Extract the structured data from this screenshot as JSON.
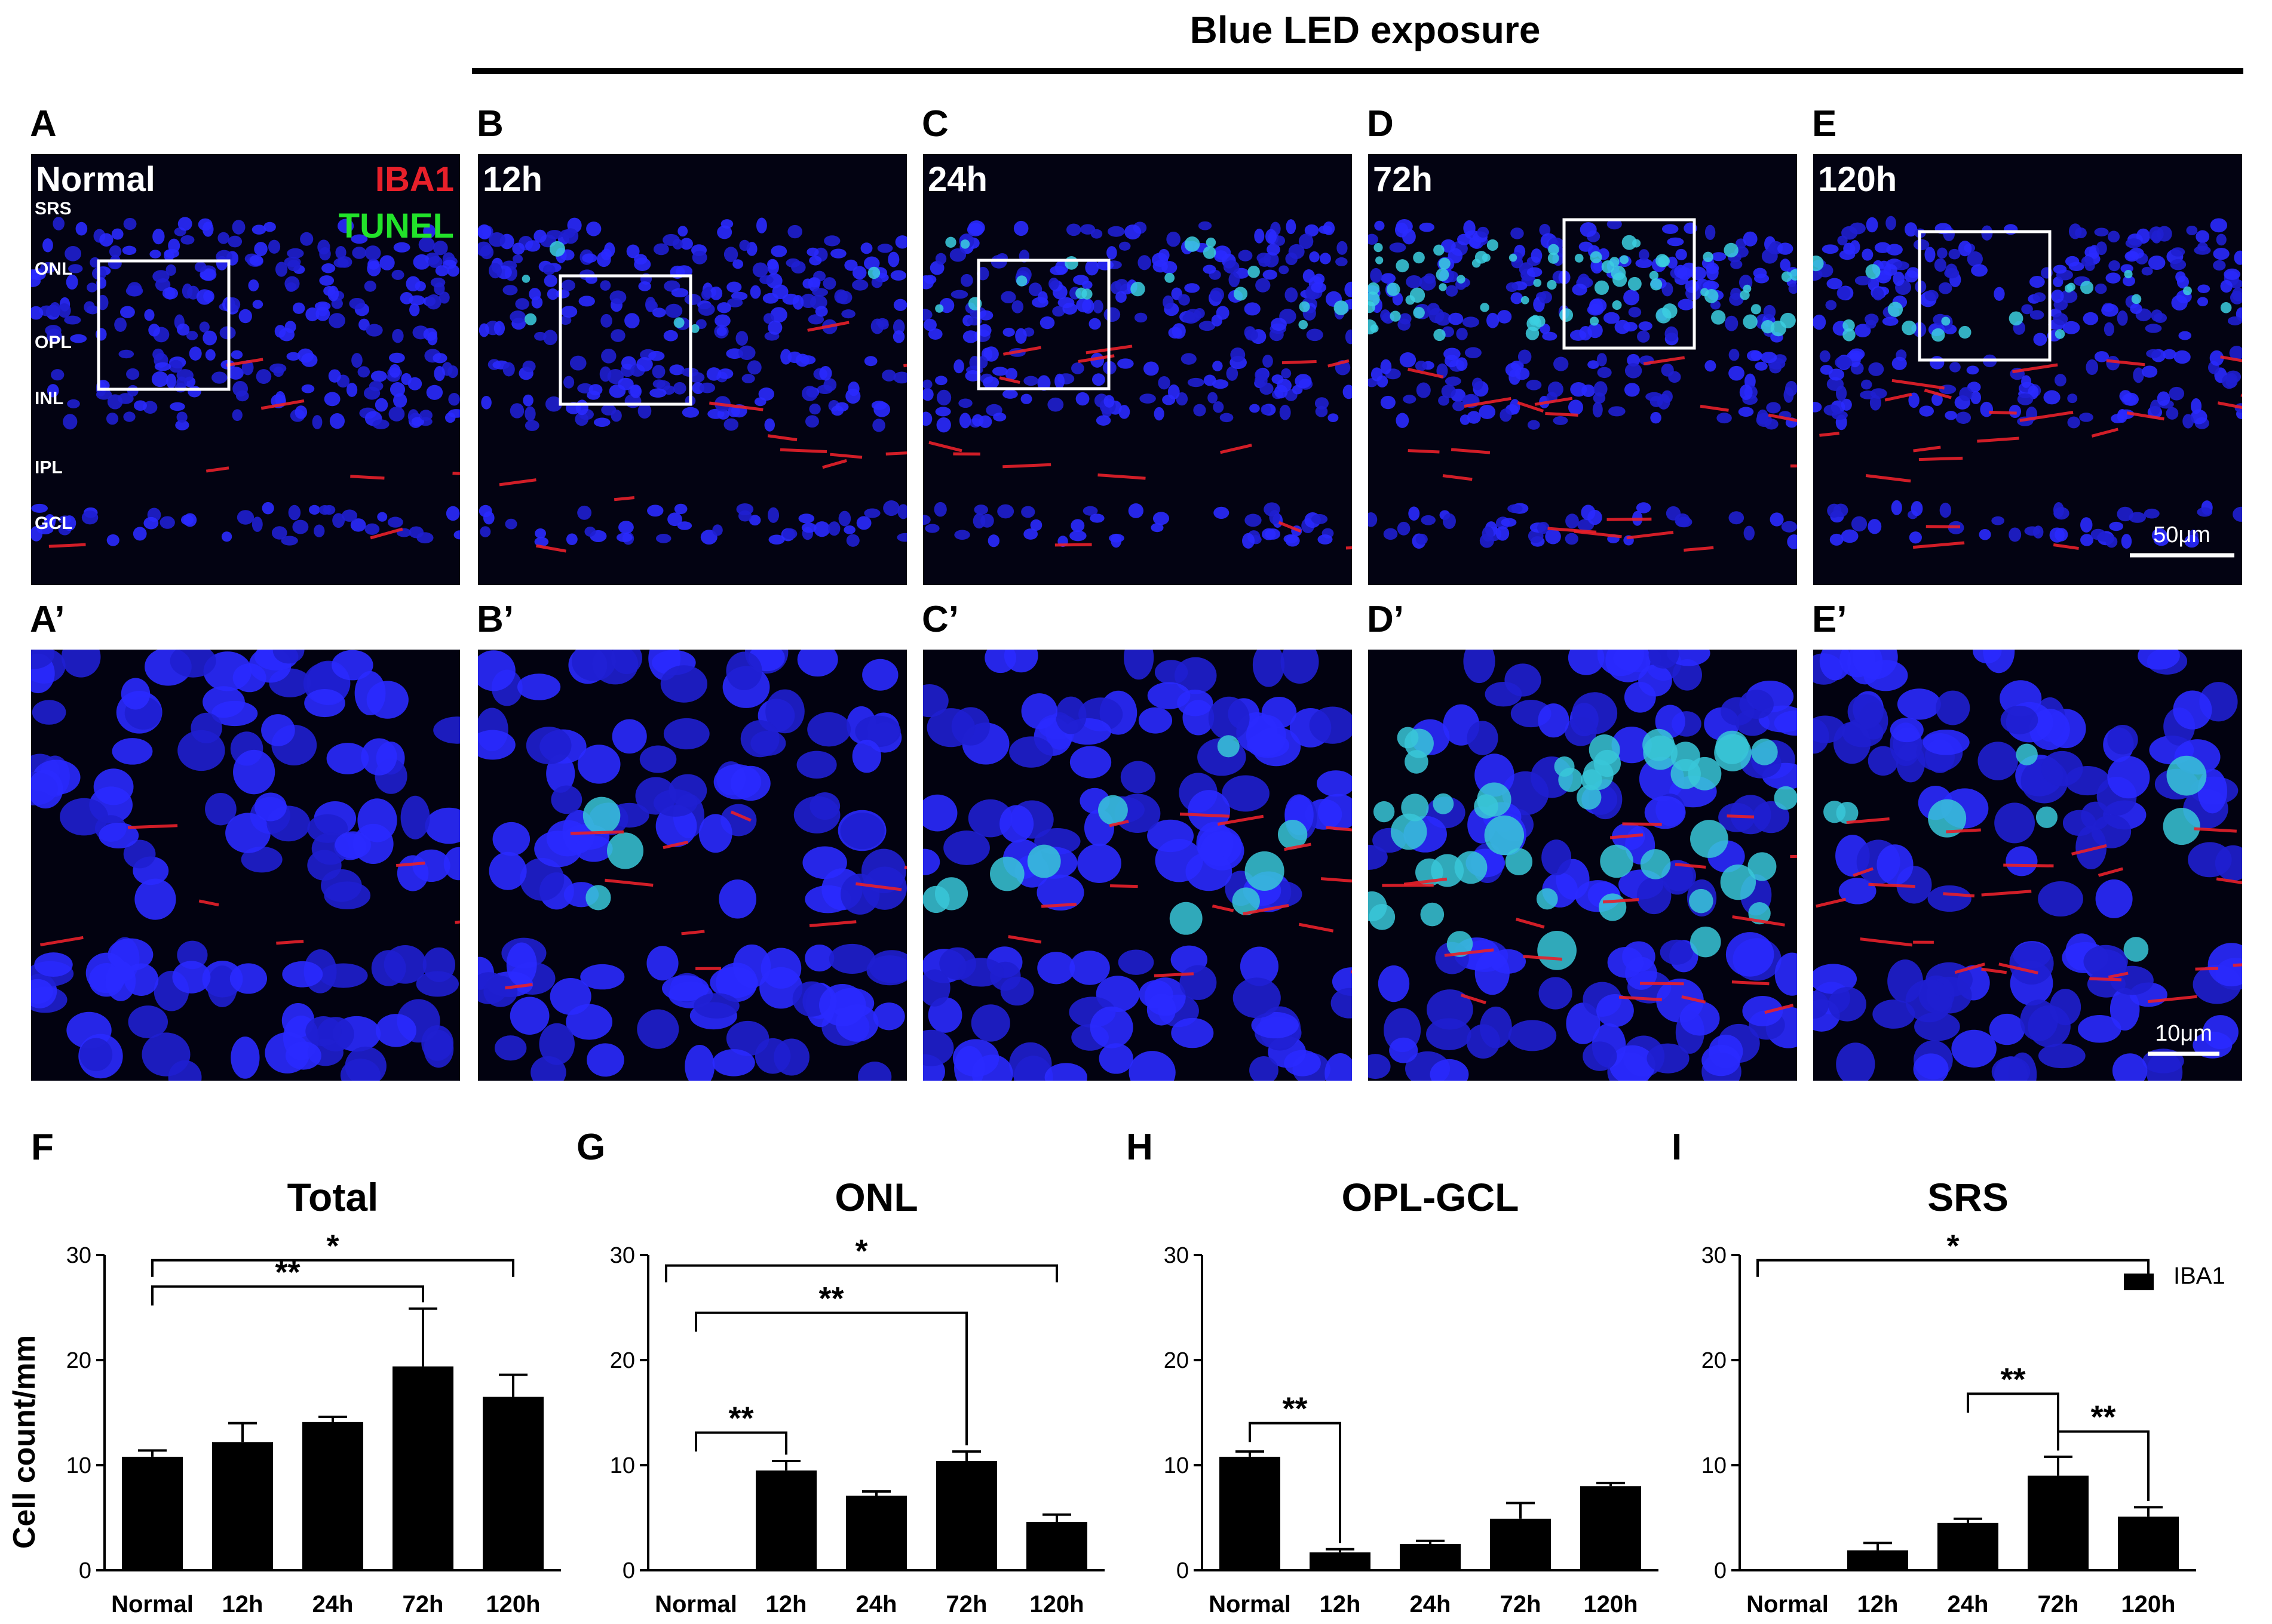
{
  "figure": {
    "header": "Blue LED exposure",
    "markers": {
      "iba1": "IBA1",
      "tunel": "TUNEL",
      "iba1_color": "#e8202a",
      "tunel_color": "#22e32a"
    },
    "nucleus_color": "#1e1ee0",
    "top_row": [
      {
        "letter": "A",
        "time": "Normal",
        "layers": [
          "SRS",
          "ONL",
          "OPL",
          "INL",
          "IPL",
          "GCL"
        ]
      },
      {
        "letter": "B",
        "time": "12h"
      },
      {
        "letter": "C",
        "time": "24h"
      },
      {
        "letter": "D",
        "time": "72h"
      },
      {
        "letter": "E",
        "time": "120h",
        "scale_bar": "50μm"
      }
    ],
    "bottom_row": [
      {
        "letter": "A’"
      },
      {
        "letter": "B’"
      },
      {
        "letter": "C’"
      },
      {
        "letter": "D’"
      },
      {
        "letter": "E’",
        "scale_bar": "10μm"
      }
    ],
    "y_axis_label": "Cell count/mm",
    "legend": {
      "label": "IBA1",
      "color": "#000000"
    }
  },
  "chart_data": [
    {
      "type": "bar",
      "panel": "F",
      "title": "Total",
      "categories": [
        "Normal",
        "12h",
        "24h",
        "72h",
        "120h"
      ],
      "values": [
        10.8,
        12.2,
        14.1,
        19.4,
        16.5
      ],
      "errors": [
        0.6,
        1.8,
        0.5,
        5.5,
        2.1
      ],
      "ylabel": "Cell count/mm",
      "ylim": [
        0,
        30
      ],
      "yticks": [
        0,
        10,
        20,
        30
      ],
      "significance": [
        {
          "from": 0,
          "to": 4,
          "label": "*"
        },
        {
          "from": 0,
          "to": 3,
          "label": "**"
        }
      ]
    },
    {
      "type": "bar",
      "panel": "G",
      "title": "ONL",
      "categories": [
        "Normal",
        "12h",
        "24h",
        "72h",
        "120h"
      ],
      "values": [
        0,
        9.5,
        7.1,
        10.4,
        4.6
      ],
      "errors": [
        0,
        0.9,
        0.4,
        0.9,
        0.7
      ],
      "ylim": [
        0,
        30
      ],
      "yticks": [
        0,
        10,
        20,
        30
      ],
      "significance": [
        {
          "from": 0,
          "to": 4,
          "label": "*"
        },
        {
          "from": 0,
          "to": 3,
          "label": "**"
        },
        {
          "from": 0,
          "to": 1,
          "label": "**"
        }
      ]
    },
    {
      "type": "bar",
      "panel": "H",
      "title": "OPL-GCL",
      "categories": [
        "Normal",
        "12h",
        "24h",
        "72h",
        "120h"
      ],
      "values": [
        10.8,
        1.7,
        2.5,
        4.9,
        8.0
      ],
      "errors": [
        0.5,
        0.3,
        0.3,
        1.5,
        0.3
      ],
      "ylim": [
        0,
        30
      ],
      "yticks": [
        0,
        10,
        20,
        30
      ],
      "significance": [
        {
          "from": 0,
          "to": 1,
          "label": "**"
        }
      ]
    },
    {
      "type": "bar",
      "panel": "I",
      "title": "SRS",
      "categories": [
        "Normal",
        "12h",
        "24h",
        "72h",
        "120h"
      ],
      "values": [
        0,
        1.9,
        4.5,
        9.0,
        5.1
      ],
      "errors": [
        0,
        0.7,
        0.4,
        1.8,
        0.9
      ],
      "ylim": [
        0,
        30
      ],
      "yticks": [
        0,
        10,
        20,
        30
      ],
      "significance": [
        {
          "from": 0,
          "to": 4,
          "label": "*"
        },
        {
          "from": 2,
          "to": 3,
          "label": "**"
        },
        {
          "from": 3,
          "to": 4,
          "label": "**"
        }
      ]
    }
  ]
}
